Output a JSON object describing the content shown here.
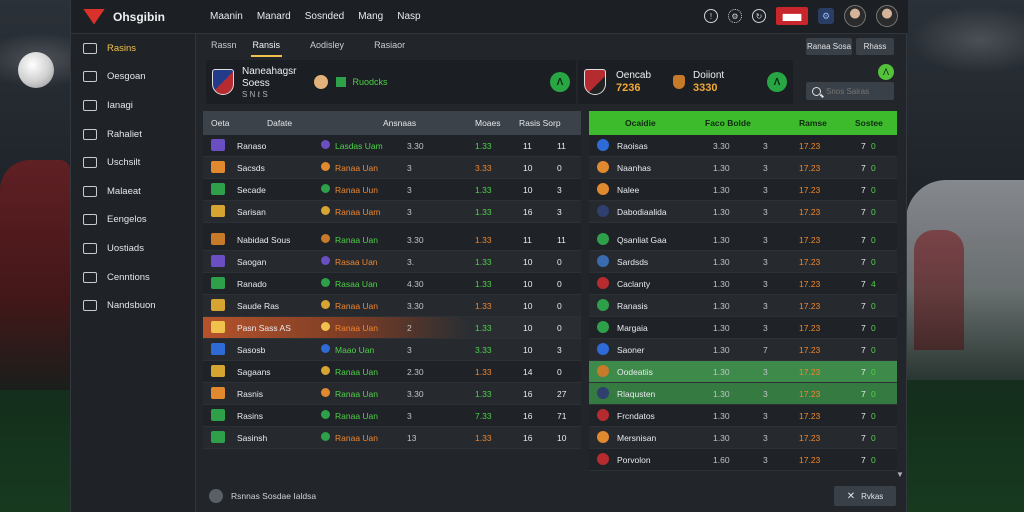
{
  "app": {
    "title": "Ohsgibin"
  },
  "topnav": [
    "Maanin",
    "Manard",
    "Sosnded",
    "Mang",
    "Nasp"
  ],
  "topbar": {
    "red_badge": "▆▆▆"
  },
  "sidebar": [
    {
      "label": "Rasins",
      "icon": "grid-icon",
      "active": true
    },
    {
      "label": "Oesgoan",
      "icon": "cloud-icon"
    },
    {
      "label": "Ianagi",
      "icon": "globe-icon"
    },
    {
      "label": "Rahaliet",
      "icon": "briefcase-icon"
    },
    {
      "label": "Uschsilt",
      "icon": "folder-icon"
    },
    {
      "label": "Malaeat",
      "icon": "wrench-icon"
    },
    {
      "label": "Eengelos",
      "icon": "chat-icon"
    },
    {
      "label": "Uostiads",
      "icon": "folder-icon"
    },
    {
      "label": "Cenntions",
      "icon": "link-icon"
    },
    {
      "label": "Nandsbuon",
      "icon": "star-icon"
    }
  ],
  "subtabs": [
    "Rassn",
    "Ransis",
    "Aodisley",
    "Rasiaor"
  ],
  "toggles": [
    "Ranaa Sosa",
    "Rhass"
  ],
  "match1": {
    "title": "Naneahagsr",
    "subtitle": "Soess",
    "meta": "S N  ℓ S",
    "side_label": "Ruodcks",
    "score_icon": "Λ"
  },
  "match2": {
    "title": "Oencab",
    "score": "7236",
    "side_label": "Doiiont",
    "side_score": "3330",
    "score_icon": "Λ"
  },
  "search": {
    "placeholder": "Snos Sairas"
  },
  "left_table": {
    "headers": [
      "Oeta",
      "Dafate",
      "Ansnaas",
      "Moaes",
      "Rasis Sorp"
    ],
    "rows": [
      {
        "team": "Ranaso",
        "player": "Lasdas Uam",
        "a": "3.30",
        "b": "1.33",
        "c": "11",
        "d": "11",
        "crest": "#6a4fc2",
        "pc": "t-green"
      },
      {
        "team": "Sacsds",
        "player": "Ranaa Uan",
        "a": "3",
        "b": "3.33",
        "c": "10",
        "d": "0",
        "crest": "#e0892e",
        "pc": "t-orange"
      },
      {
        "team": "Secade",
        "player": "Ranaa Uun",
        "a": "3",
        "b": "1.33",
        "c": "10",
        "d": "3",
        "crest": "#2fa04a",
        "pc": "t-orange"
      },
      {
        "team": "Sarisan",
        "player": "Ranaa Uam",
        "a": "3",
        "b": "1.33",
        "c": "16",
        "d": "3",
        "crest": "#d6a531",
        "pc": "t-orange"
      },
      {
        "team": "Nabidad Sous",
        "player": "Ranaa Uan",
        "a": "3.30",
        "b": "1.33",
        "c": "11",
        "d": "11",
        "crest": "#c77a2a",
        "pc": "t-green"
      },
      {
        "team": "Saogan",
        "player": "Rasaa Uan",
        "a": "3.",
        "b": "1.33",
        "c": "10",
        "d": "0",
        "crest": "#6a4fc2",
        "pc": "t-orange"
      },
      {
        "team": "Ranado",
        "player": "Rasaa Uan",
        "a": "4.30",
        "b": "1.33",
        "c": "10",
        "d": "0",
        "crest": "#2fa04a",
        "pc": "t-green"
      },
      {
        "team": "Saude Ras",
        "player": "Ranaa Uan",
        "a": "3.30",
        "b": "1.33",
        "c": "10",
        "d": "0",
        "crest": "#d6a531",
        "pc": "t-orange"
      },
      {
        "team": "Pasn Sass AS",
        "player": "Ranaa Uan",
        "a": "2",
        "b": "1.33",
        "c": "10",
        "d": "0",
        "crest": "#f1c24b",
        "pc": "t-orange"
      },
      {
        "team": "Sasosb",
        "player": "Maao Uan",
        "a": "3",
        "b": "3.33",
        "c": "10",
        "d": "3",
        "crest": "#2f6bd6",
        "pc": "t-green"
      },
      {
        "team": "Sagaans",
        "player": "Ranaa Uan",
        "a": "2.30",
        "b": "1.33",
        "c": "14",
        "d": "0",
        "crest": "#d6a531",
        "pc": "t-green"
      },
      {
        "team": "Rasnis",
        "player": "Ranaa Uan",
        "a": "3.30",
        "b": "1.33",
        "c": "16",
        "d": "27",
        "crest": "#e0892e",
        "pc": "t-green"
      },
      {
        "team": "Rasins",
        "player": "Ranaa Uan",
        "a": "3",
        "b": "7.33",
        "c": "16",
        "d": "71",
        "crest": "#2fa04a",
        "pc": "t-green"
      },
      {
        "team": "Sasinsh",
        "player": "Ranaa Uan",
        "a": "13",
        "b": "1.33",
        "c": "16",
        "d": "10",
        "crest": "#2fa04a",
        "pc": "t-orange"
      }
    ]
  },
  "right_table": {
    "headers": [
      "Ocaidie",
      "Faco Bolde",
      "Ramse",
      "Sostee"
    ],
    "rows": [
      {
        "team": "Raoisas",
        "a": "3.30",
        "b": "3",
        "c": "17.23",
        "d": "7",
        "e": "0",
        "crest": "#2f6bd6"
      },
      {
        "team": "Naanhas",
        "a": "1.30",
        "b": "3",
        "c": "17.23",
        "d": "7",
        "e": "0",
        "crest": "#e0892e"
      },
      {
        "team": "Nalee",
        "a": "1.30",
        "b": "3",
        "c": "17.23",
        "d": "7",
        "e": "0",
        "crest": "#e0892e"
      },
      {
        "team": "Dabodiaalida",
        "a": "1.30",
        "b": "3",
        "c": "17.23",
        "d": "7",
        "e": "0",
        "crest": "#2f3f6e"
      },
      {
        "team": "Qsanliat Gaa",
        "a": "1.30",
        "b": "3",
        "c": "17.23",
        "d": "7",
        "e": "0",
        "crest": "#2fa04a"
      },
      {
        "team": "Sardsds",
        "a": "1.30",
        "b": "3",
        "c": "17.23",
        "d": "7",
        "e": "0",
        "crest": "#3a6ab0"
      },
      {
        "team": "Caclanty",
        "a": "1.30",
        "b": "3",
        "c": "17.23",
        "d": "7",
        "e": "4",
        "crest": "#b62b30"
      },
      {
        "team": "Ranasis",
        "a": "1.30",
        "b": "3",
        "c": "17.23",
        "d": "7",
        "e": "0",
        "crest": "#2fa04a"
      },
      {
        "team": "Margaia",
        "a": "1.30",
        "b": "3",
        "c": "17.23",
        "d": "7",
        "e": "0",
        "crest": "#2fa04a"
      },
      {
        "team": "Saoner",
        "a": "1.30",
        "b": "7",
        "c": "17.23",
        "d": "7",
        "e": "0",
        "crest": "#2f6bd6"
      },
      {
        "team": "Oodeatiis",
        "a": "1.30",
        "b": "3",
        "c": "17.23",
        "d": "7",
        "e": "0",
        "crest": "#c77a2a"
      },
      {
        "team": "Rlaqusten",
        "a": "1.30",
        "b": "3",
        "c": "17.23",
        "d": "7",
        "e": "0",
        "crest": "#2f3f6e"
      },
      {
        "team": "Frcndatos",
        "a": "1.30",
        "b": "3",
        "c": "17.23",
        "d": "7",
        "e": "0",
        "crest": "#b62b30"
      },
      {
        "team": "Mersnisan",
        "a": "1.30",
        "b": "3",
        "c": "17.23",
        "d": "7",
        "e": "0",
        "crest": "#e0892e"
      },
      {
        "team": "Porvolon",
        "a": "1.60",
        "b": "3",
        "c": "17.23",
        "d": "7",
        "e": "0",
        "crest": "#b62b30"
      }
    ]
  },
  "footer": {
    "text": "Rsnnas Sosdae Ialdsa"
  },
  "close_button": "Rvkas"
}
